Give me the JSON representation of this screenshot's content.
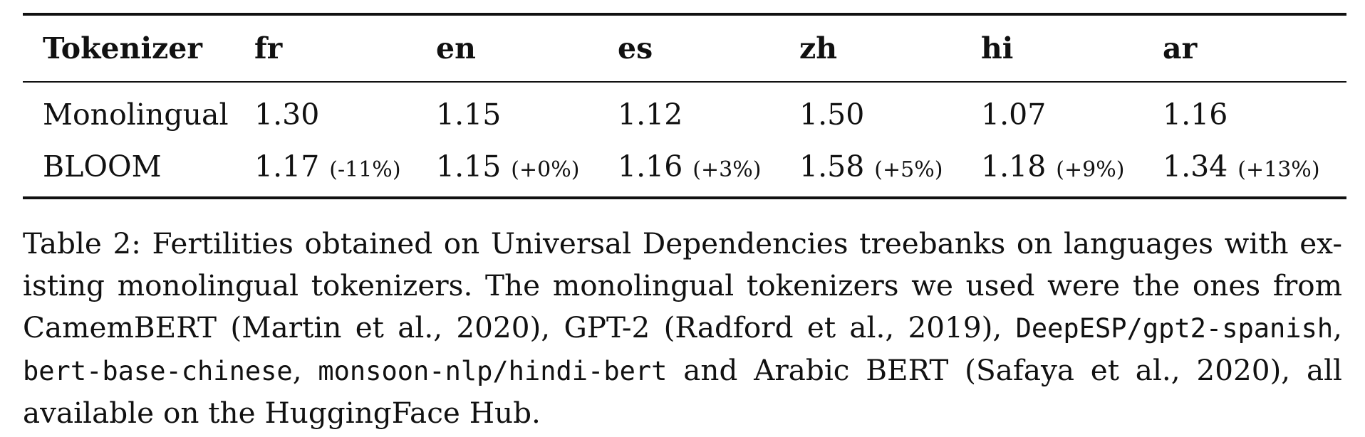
{
  "table": {
    "headers": [
      "Tokenizer",
      "fr",
      "en",
      "es",
      "zh",
      "hi",
      "ar"
    ],
    "rows": [
      {
        "label": "Monolingual",
        "values": [
          "1.30",
          "1.15",
          "1.12",
          "1.50",
          "1.07",
          "1.16"
        ],
        "changes": [
          "",
          "",
          "",
          "",
          "",
          ""
        ]
      },
      {
        "label": "BLOOM",
        "values": [
          "1.17",
          "1.15",
          "1.16",
          "1.58",
          "1.18",
          "1.34"
        ],
        "changes": [
          "(-11%)",
          "(+0%)",
          "(+3%)",
          "(+5%)",
          "(+9%)",
          "(+13%)"
        ]
      }
    ]
  },
  "caption": {
    "line1": "Table 2: Fertilities obtained on Universal Dependencies treebanks on languages with ex-",
    "line2": "isting monolingual tokenizers. The monolingual tokenizers we used were the ones from",
    "line3_text": "CamemBERT (Martin et al., 2020), GPT-2 (Radford et al., 2019),",
    "line3_code": "DeepESP/gpt2-spanish",
    "line3_end": ",",
    "line4_code1": "bert-base-chinese",
    "line4_sep": ",",
    "line4_code2": "monsoon-nlp/hindi-bert",
    "line4_text": "and Arabic BERT (Safaya et al., 2020), all",
    "line5": "available on the HuggingFace Hub."
  }
}
